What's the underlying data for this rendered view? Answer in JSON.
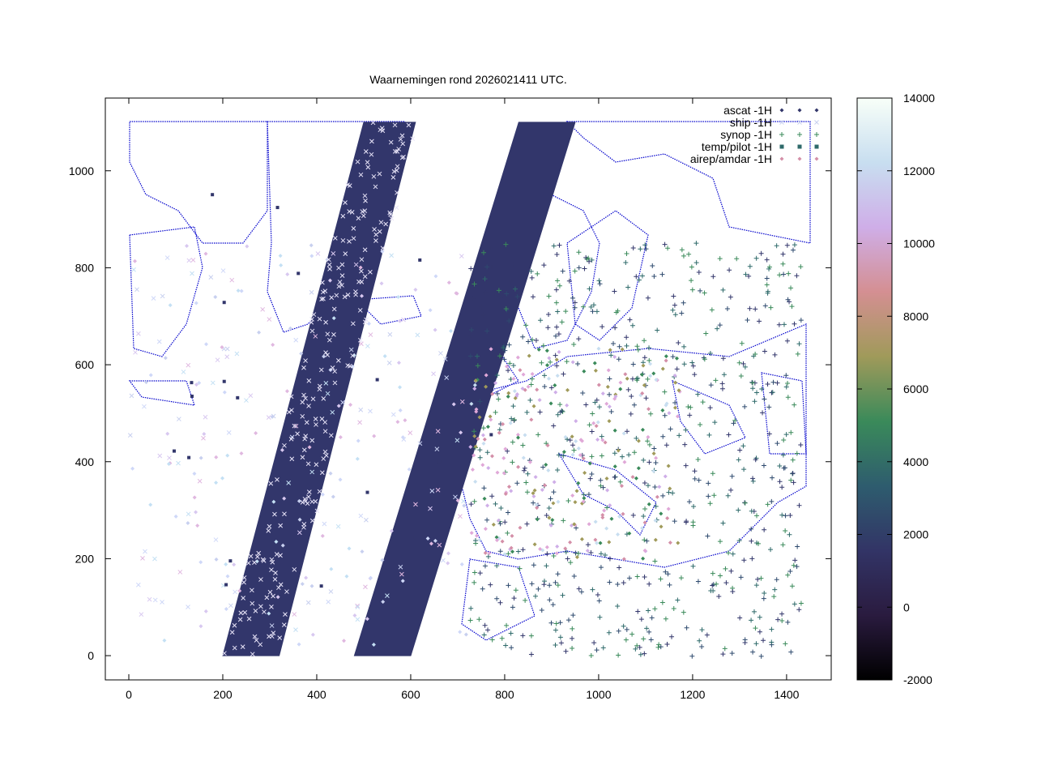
{
  "chart_data": {
    "type": "scatter",
    "title": "Waarnemingen rond 2026021411 UTC.",
    "xlabel": "",
    "ylabel": "",
    "xlim": [
      -50,
      1495
    ],
    "ylim": [
      -50,
      1150
    ],
    "xticks": [
      0,
      200,
      400,
      600,
      800,
      1000,
      1200,
      1400
    ],
    "yticks": [
      0,
      200,
      400,
      600,
      800,
      1000
    ],
    "grid": false,
    "legend_position": "top-right",
    "colorbar": {
      "min": -2000,
      "max": 14000,
      "ticks": [
        -2000,
        0,
        2000,
        4000,
        6000,
        8000,
        10000,
        12000,
        14000
      ],
      "colormap": [
        "#000000",
        "#2a1b3f",
        "#323466",
        "#2e5c6e",
        "#3a8a5a",
        "#a09a5a",
        "#d48f92",
        "#cfaee8",
        "#c8def0",
        "#f8fff8"
      ]
    },
    "series": [
      {
        "name": "ascat -1H",
        "marker": "diamond",
        "color": "#32366b"
      },
      {
        "name": "ship -1H",
        "marker": "x",
        "color": "#c8d0ef"
      },
      {
        "name": "synop -1H",
        "marker": "plus",
        "color": "#3a8a5a"
      },
      {
        "name": "temp/pilot -1H",
        "marker": "square",
        "color": "#2e6a6a"
      },
      {
        "name": "airep/amdar -1H",
        "marker": "diamond-small",
        "color": "#d48fa8"
      }
    ],
    "swaths": [
      {
        "series": "ascat -1H",
        "polygon": [
          [
            200,
            0
          ],
          [
            320,
            0
          ],
          [
            610,
            1100
          ],
          [
            500,
            1100
          ]
        ]
      },
      {
        "series": "ascat -1H",
        "polygon": [
          [
            480,
            0
          ],
          [
            600,
            0
          ],
          [
            950,
            1100
          ],
          [
            830,
            1100
          ]
        ]
      }
    ],
    "coastline_color": "#0000cc"
  }
}
